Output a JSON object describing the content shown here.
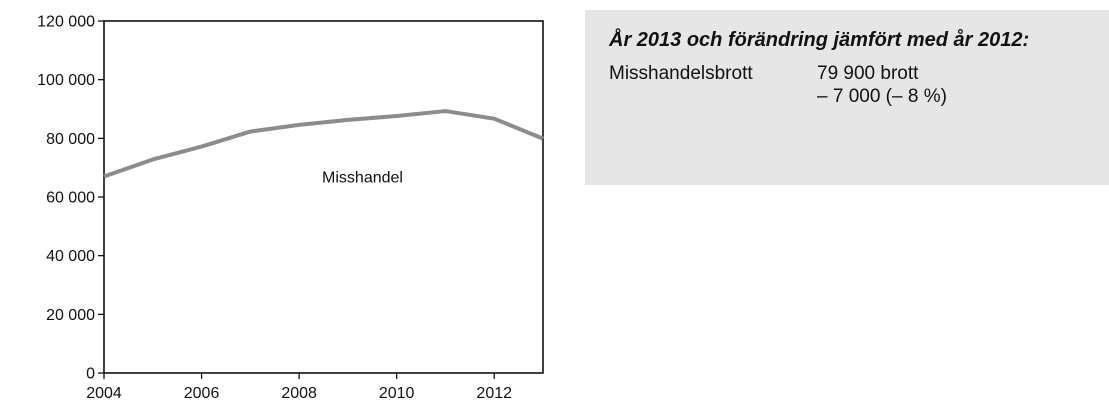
{
  "chart_data": {
    "type": "line",
    "x": [
      2004,
      2005,
      2006,
      2007,
      2008,
      2009,
      2010,
      2011,
      2012,
      2013
    ],
    "series": [
      {
        "values": [
          67000,
          72800,
          77200,
          82300,
          84600,
          86300,
          87600,
          89300,
          86700,
          79900
        ],
        "color": "#8c8c8c"
      }
    ],
    "xlim": [
      2004,
      2013
    ],
    "ylim": [
      0,
      120000
    ],
    "x_ticks": [
      2004,
      2006,
      2008,
      2010,
      2012
    ],
    "x_tick_labels": [
      "2004",
      "2006",
      "2008",
      "2010",
      "2012"
    ],
    "y_ticks": [
      0,
      20000,
      40000,
      60000,
      80000,
      100000,
      120000
    ],
    "y_tick_labels": [
      "0",
      "20 000",
      "40 000",
      "60 000",
      "80 000",
      "100 000",
      "120 000"
    ],
    "annotation": {
      "text": "Misshandel",
      "x": 2009.3,
      "y": 65000
    },
    "grid": false
  },
  "info": {
    "title": "År 2013 och förändring jämfört med år 2012:",
    "label": "Misshandelsbrott",
    "value": "79 900 brott",
    "change": "– 7 000 (– 8 %)"
  }
}
